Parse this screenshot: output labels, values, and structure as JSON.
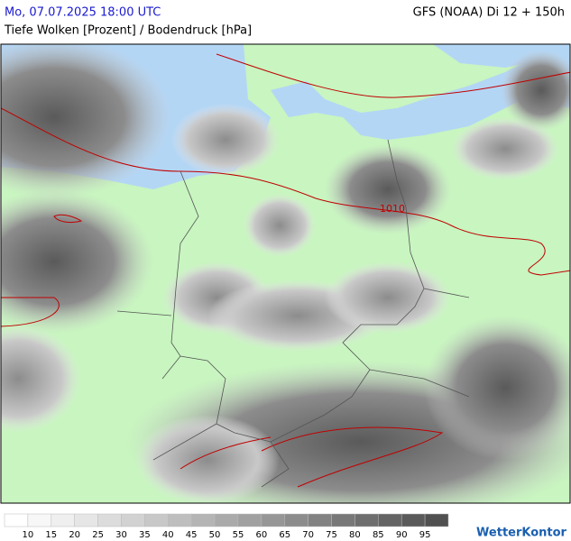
{
  "header": {
    "datetime": "Mo, 07.07.2025 18:00 UTC",
    "model": "GFS (NOAA) Di 12 + 150h",
    "title": "Tiefe Wolken [Prozent] / Bodendruck [hPa]"
  },
  "map": {
    "isobar_label": "1010"
  },
  "legend": {
    "colors": [
      "#ffffff",
      "#f7f7f7",
      "#efefef",
      "#e6e6e6",
      "#dcdcdc",
      "#d2d2d2",
      "#c8c8c8",
      "#bebebe",
      "#b4b4b4",
      "#aaaaaa",
      "#a0a0a0",
      "#969696",
      "#8c8c8c",
      "#828282",
      "#787878",
      "#6e6e6e",
      "#646464",
      "#5a5a5a",
      "#505050"
    ],
    "ticks": [
      "10",
      "15",
      "20",
      "25",
      "30",
      "35",
      "40",
      "45",
      "50",
      "55",
      "60",
      "65",
      "70",
      "75",
      "80",
      "85",
      "90",
      "95"
    ]
  },
  "logo": "WetterKontor"
}
